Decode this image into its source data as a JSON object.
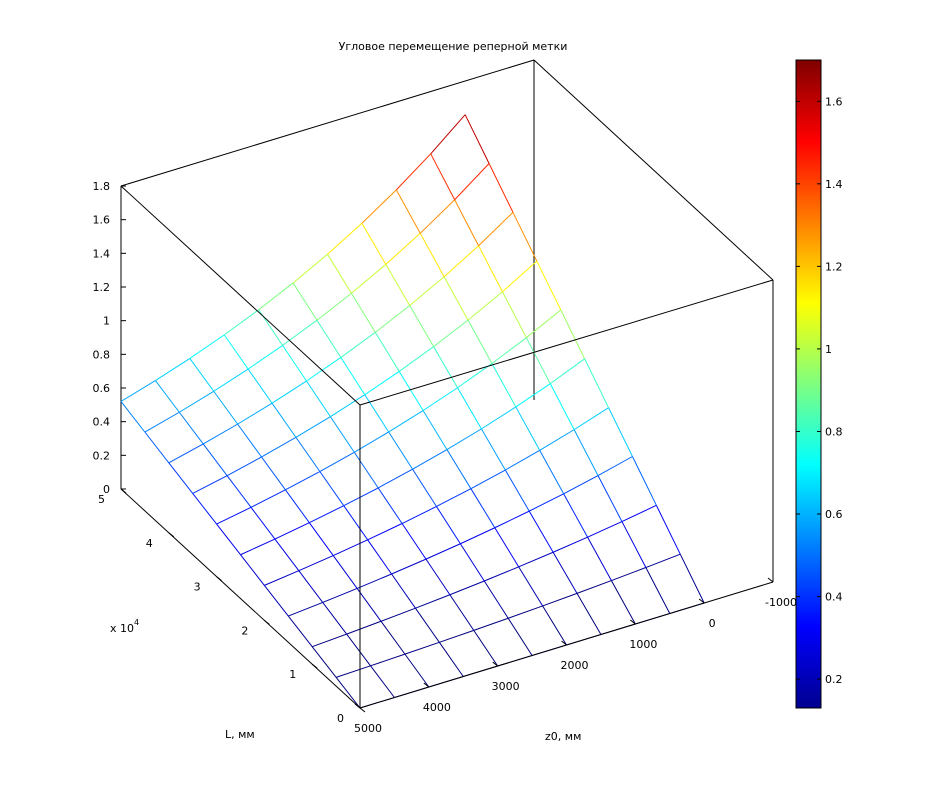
{
  "chart_data": {
    "type": "surface",
    "title": "Угловое перемещение реперной метки",
    "xlabel": "z0, мм",
    "ylabel": "L, мм",
    "y_exponent_label": "x 10",
    "y_exponent_power": "4",
    "z_ticks": [
      "0",
      "0.2",
      "0.4",
      "0.6",
      "0.8",
      "1",
      "1.2",
      "1.4",
      "1.6",
      "1.8"
    ],
    "x_ticks": [
      "5000",
      "4000",
      "3000",
      "2000",
      "1000",
      "0",
      "-1000"
    ],
    "y_ticks": [
      "0",
      "1",
      "2",
      "3",
      "4",
      "5"
    ],
    "x_range": [
      -1000,
      5000
    ],
    "y_range": [
      0,
      50000
    ],
    "z_range": [
      0,
      1.8
    ],
    "colorbar": {
      "colormap": "jet",
      "range": [
        0.13,
        1.7
      ],
      "ticks": [
        "0.2",
        "0.4",
        "0.6",
        "0.8",
        "1",
        "1.2",
        "1.4",
        "1.6"
      ]
    },
    "surface": {
      "z0_grid": [
        0,
        500,
        1000,
        1500,
        2000,
        2500,
        3000,
        3500,
        4000,
        4500,
        5000
      ],
      "L_grid": [
        0,
        5000,
        10000,
        15000,
        20000,
        25000,
        30000,
        35000,
        40000,
        45000,
        50000
      ],
      "z_at_max_L_min_z0": 1.6,
      "z_at_max_L_max_z0": 0.52,
      "z_decay_with_z0": "exponential",
      "z_growth_with_L": "linear from 0"
    },
    "grid": false,
    "box": true
  }
}
